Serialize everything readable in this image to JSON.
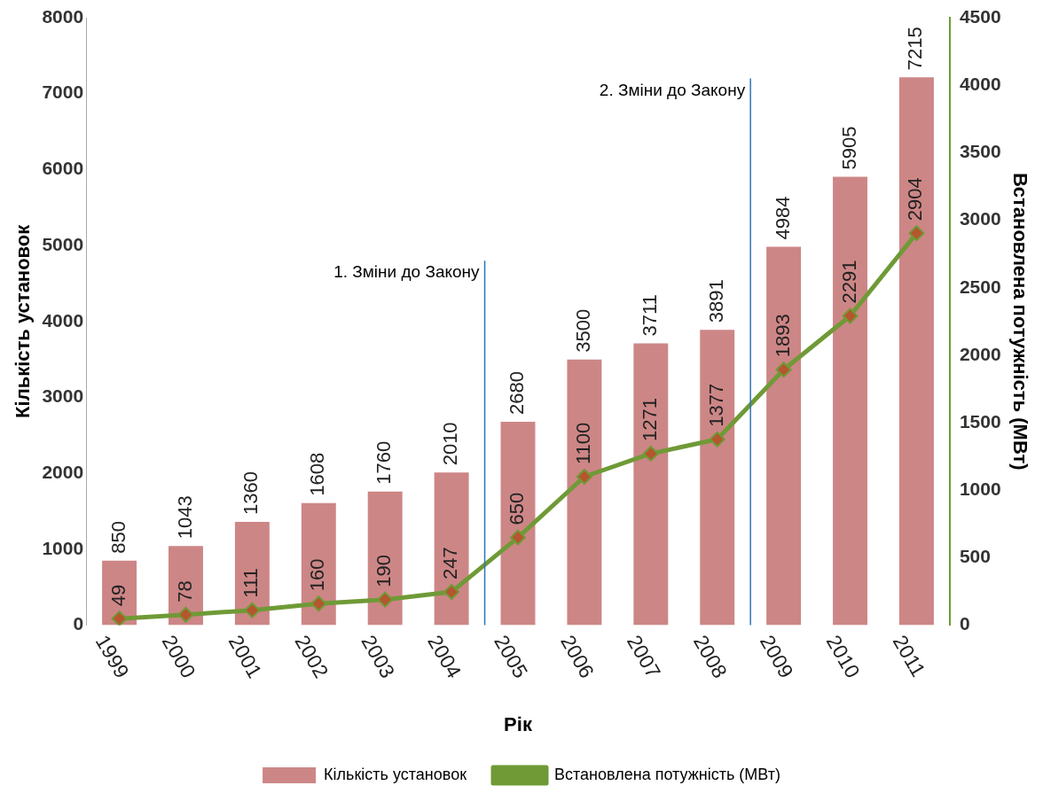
{
  "chart_data": {
    "type": "bar",
    "xlabel": "Рік",
    "ylabel": "Кількість установок",
    "y2label": "Встановлена потужність (МВт)",
    "categories": [
      "1999",
      "2000",
      "2001",
      "2002",
      "2003",
      "2004",
      "2005",
      "2006",
      "2007",
      "2008",
      "2009",
      "2010",
      "2011"
    ],
    "series": [
      {
        "name": "Кількість установок",
        "color": "#cd8686",
        "values": [
          850,
          1043,
          1360,
          1608,
          1760,
          2010,
          2680,
          3500,
          3711,
          3891,
          4984,
          5905,
          7215
        ]
      },
      {
        "name": "Встановлена потужність (МВт)",
        "type": "line",
        "axis": "y2",
        "color": "#6f9a36",
        "marker": "diamond",
        "values": [
          49,
          78,
          111,
          160,
          190,
          247,
          650,
          1100,
          1271,
          1377,
          1893,
          2291,
          2904
        ]
      }
    ],
    "ylim": [
      0,
      8000
    ],
    "yticks": [
      0,
      1000,
      2000,
      3000,
      4000,
      5000,
      6000,
      7000,
      8000
    ],
    "y2lim": [
      0,
      4500
    ],
    "y2ticks": [
      0,
      500,
      1000,
      1500,
      2000,
      2500,
      3000,
      3500,
      4000,
      4500
    ],
    "ref_lines": [
      {
        "axis": "x",
        "value": "2005",
        "label": "1. Зміни до Закону",
        "color": "#2e75b6"
      },
      {
        "axis": "x",
        "value": "2009",
        "label": "2. Зміни до Закону",
        "color": "#2e75b6"
      }
    ],
    "data_labels": true,
    "grid": false,
    "legend": "bottom"
  }
}
